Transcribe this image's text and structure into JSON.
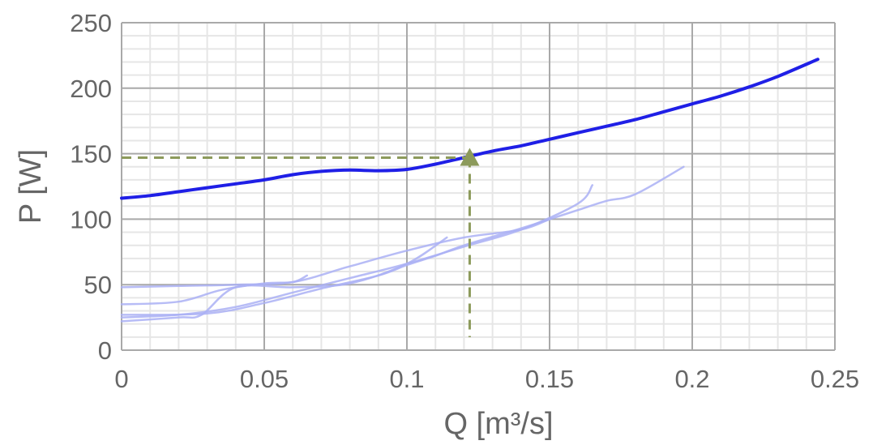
{
  "chart_data": {
    "type": "line",
    "title": "",
    "xlabel": "Q [m³/s]",
    "ylabel": "P [W]",
    "xlim": [
      0,
      0.25
    ],
    "ylim": [
      0,
      250
    ],
    "x_ticks": [
      0,
      0.05,
      0.1,
      0.15,
      0.2,
      0.25
    ],
    "x_tick_labels": [
      "0",
      "0.05",
      "0.1",
      "0.15",
      "0.2",
      "0.25"
    ],
    "y_ticks": [
      0,
      50,
      100,
      150,
      200,
      250
    ],
    "y_tick_labels": [
      "0",
      "50",
      "100",
      "150",
      "200",
      "250"
    ],
    "grid": true,
    "legend": "none",
    "colors": {
      "main_line": "#1f1fe6",
      "faint_lines": "#aab0f5",
      "operating_point": "#8c9a5b",
      "major_grid": "#a9a9a9",
      "minor_grid": "#e6e6e6",
      "text": "#666666"
    },
    "series": [
      {
        "role": "main",
        "x": [
          0,
          0.01,
          0.02,
          0.03,
          0.04,
          0.05,
          0.06,
          0.07,
          0.08,
          0.09,
          0.1,
          0.11,
          0.12,
          0.13,
          0.14,
          0.15,
          0.16,
          0.17,
          0.18,
          0.19,
          0.2,
          0.21,
          0.22,
          0.23,
          0.244
        ],
        "y": [
          116,
          118,
          121,
          124,
          127,
          130,
          134,
          136.5,
          137.5,
          137,
          138,
          142,
          147,
          152,
          156,
          161,
          166,
          171,
          176,
          182,
          188,
          194,
          201,
          209,
          222
        ]
      },
      {
        "role": "faint",
        "x": [
          0,
          0.02,
          0.04,
          0.06,
          0.08,
          0.1,
          0.12,
          0.14,
          0.16,
          0.165
        ],
        "y": [
          25,
          27,
          33,
          44,
          55,
          66,
          79,
          92,
          112,
          126
        ]
      },
      {
        "role": "faint",
        "x": [
          0,
          0.03,
          0.05,
          0.07,
          0.09,
          0.1,
          0.11,
          0.12,
          0.14,
          0.15,
          0.16,
          0.17,
          0.18,
          0.197
        ],
        "y": [
          27,
          28,
          36,
          47,
          57,
          65,
          72,
          80,
          93,
          100,
          107,
          114,
          119,
          140
        ]
      },
      {
        "role": "faint",
        "x": [
          0,
          0.02,
          0.035,
          0.05,
          0.06,
          0.065
        ],
        "y": [
          35,
          37,
          46,
          51,
          52,
          57
        ]
      },
      {
        "role": "faint",
        "x": [
          0,
          0.02,
          0.028,
          0.04,
          0.06,
          0.08,
          0.1,
          0.114
        ],
        "y": [
          22,
          25,
          27,
          48,
          48,
          51,
          66,
          86
        ]
      },
      {
        "role": "faint",
        "x": [
          0,
          0.02,
          0.04,
          0.06,
          0.08,
          0.1,
          0.12,
          0.14,
          0.15
        ],
        "y": [
          48,
          49,
          50,
          52,
          64,
          76,
          86,
          92,
          100
        ]
      }
    ],
    "operating_point": {
      "x": 0.122,
      "y": 147
    }
  }
}
